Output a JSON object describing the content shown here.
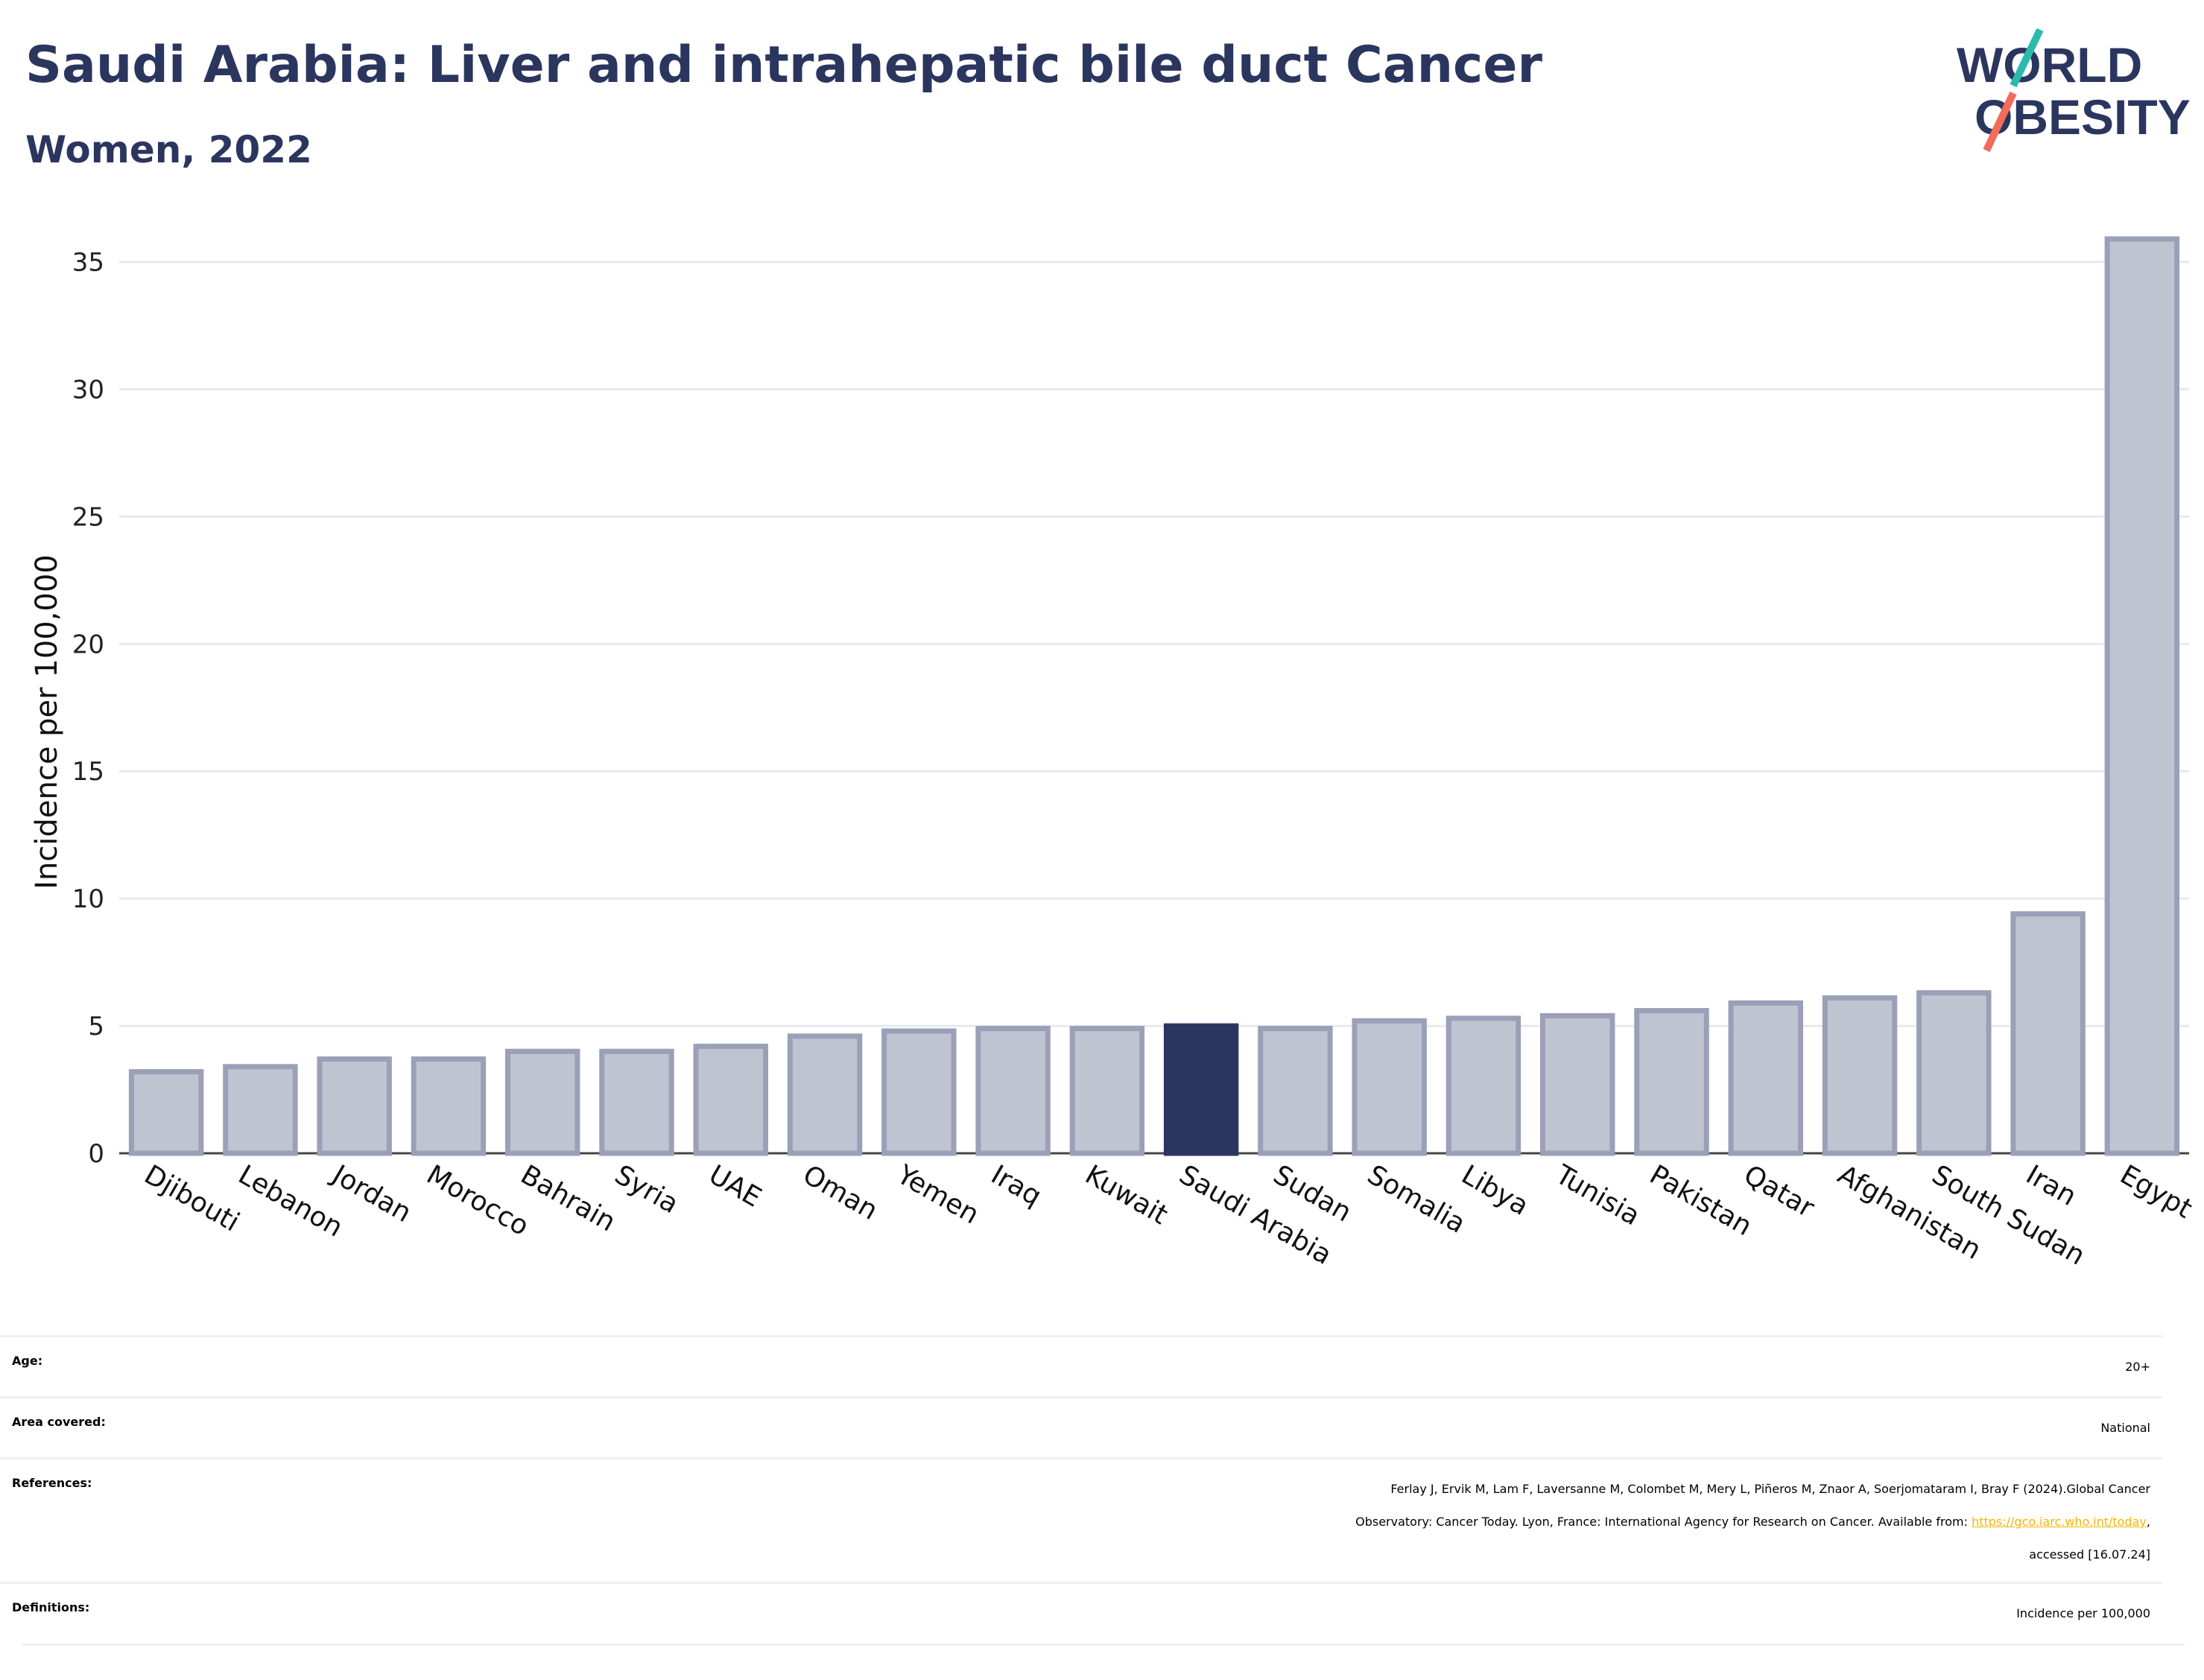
{
  "header": {
    "title": "Saudi Arabia: Liver and intrahepatic bile duct Cancer",
    "subtitle": "Women, 2022"
  },
  "logo": {
    "line1": "WORLD",
    "line2": "OBESITY",
    "slash_colors": [
      "#2bbbad",
      "#f26b5b"
    ],
    "text_color": "#2b365f"
  },
  "chart_data": {
    "type": "bar",
    "categories": [
      "Djibouti",
      "Lebanon",
      "Jordan",
      "Morocco",
      "Bahrain",
      "Syria",
      "UAE",
      "Oman",
      "Yemen",
      "Iraq",
      "Kuwait",
      "Saudi Arabia",
      "Sudan",
      "Somalia",
      "Libya",
      "Tunisia",
      "Pakistan",
      "Qatar",
      "Afghanistan",
      "South Sudan",
      "Iran",
      "Egypt"
    ],
    "values": [
      3.2,
      3.4,
      3.7,
      3.7,
      4.0,
      4.0,
      4.2,
      4.6,
      4.8,
      4.9,
      4.9,
      5.0,
      4.9,
      5.2,
      5.3,
      5.4,
      5.6,
      5.9,
      6.1,
      6.3,
      9.4,
      35.9
    ],
    "highlight": "Saudi Arabia",
    "title": "",
    "xlabel": "",
    "ylabel": "Incidence per 100,000",
    "ylim": [
      0,
      36.8
    ],
    "yticks": [
      0,
      5,
      10,
      15,
      20,
      25,
      30,
      35
    ],
    "grid": true,
    "colors": {
      "bar": "#c0c4d1",
      "bar_edge": "#9aa0b8",
      "highlight": "#2b365f",
      "grid": "#e8e9ef"
    }
  },
  "footer": {
    "age": {
      "label": "Age:",
      "value": "20+"
    },
    "area": {
      "label": "Area covered:",
      "value": "National"
    },
    "references": {
      "label": "References:",
      "line1": "Ferlay J, Ervik M, Lam F, Laversanne M, Colombet M, Mery L, Piñeros M, Znaor A, Soerjomataram I, Bray F (2024).Global Cancer",
      "line2_pre": "Observatory: Cancer Today. Lyon, France: International Agency for Research on Cancer. Available from: ",
      "link": "https://gco.iarc.who.int/today",
      "line2_post": ",",
      "line3": "accessed [16.07.24]"
    },
    "definitions": {
      "label": "Definitions:",
      "value": "Incidence per 100,000"
    }
  }
}
